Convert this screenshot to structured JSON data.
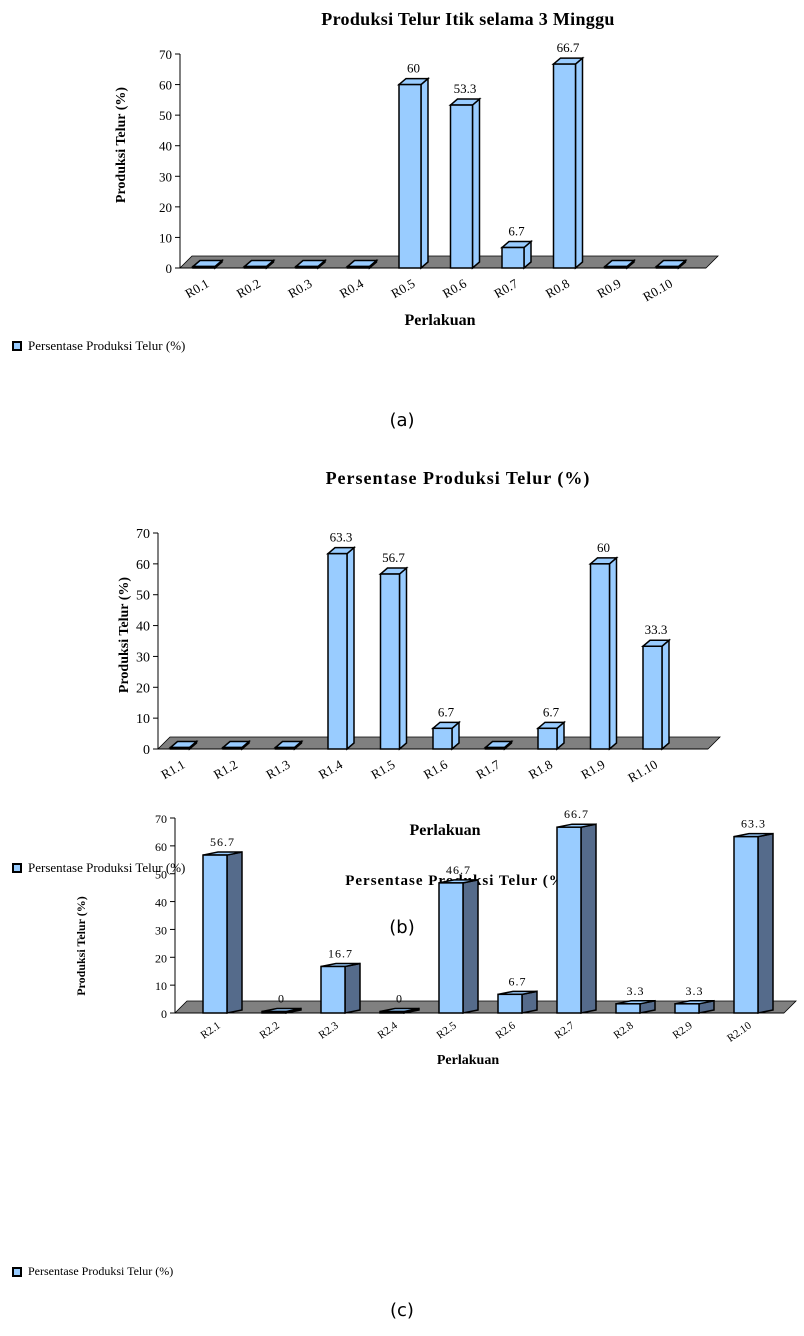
{
  "chart_data": [
    {
      "type": "bar",
      "title": "Produksi Telur Itik selama 3 Minggu",
      "xlabel": "Perlakuan",
      "ylabel": "Produksi  Telur (%)",
      "ylim": [
        0,
        70
      ],
      "yticks": [
        "0",
        "10",
        "20",
        "30",
        "40",
        "50",
        "60",
        "70"
      ],
      "categories": [
        "R0.1",
        "R0.2",
        "R0.3",
        "R0.4",
        "R0.5",
        "R0.6",
        "R0.7",
        "R0.8",
        "R0.9",
        "R0.10"
      ],
      "series": [
        {
          "name": "Persentase Produksi Telur (%)",
          "values": [
            0,
            0,
            0,
            0,
            60,
            53.3,
            6.7,
            66.7,
            0,
            0
          ],
          "labels": [
            "",
            "",
            "",
            "",
            "60",
            "53.3",
            "6.7",
            "66.7",
            "",
            ""
          ]
        }
      ],
      "legend": "bottom-left",
      "grid": false,
      "caption": "(a)",
      "colors": {
        "bar_front": "#99ccff",
        "bar_side": "#99ccff",
        "floor": "#808080"
      }
    },
    {
      "type": "bar",
      "title": "Persentase Produksi Telur (%)",
      "xlabel": "Perlakuan",
      "ylabel": "Produksi Telur (%)",
      "ylim": [
        0,
        70
      ],
      "yticks": [
        "0",
        "10",
        "20",
        "30",
        "40",
        "50",
        "60",
        "70"
      ],
      "categories": [
        "R1.1",
        "R1.2",
        "R1.3",
        "R1.4",
        "R1.5",
        "R1.6",
        "R1.7",
        "R1.8",
        "R1.9",
        "R1.10"
      ],
      "series": [
        {
          "name": "Persentase Produksi Telur (%)",
          "values": [
            0,
            0,
            0,
            63.3,
            56.7,
            6.7,
            0,
            6.7,
            60,
            33.3
          ],
          "labels": [
            "",
            "",
            "",
            "63.3",
            "56.7",
            "6.7",
            "",
            "6.7",
            "60",
            "33.3"
          ]
        }
      ],
      "legend": "bottom-left",
      "grid": false,
      "caption": "(b)",
      "colors": {
        "bar_front": "#99ccff",
        "bar_side": "#99ccff",
        "floor": "#808080"
      }
    },
    {
      "type": "bar",
      "title": "Persentase Produksi Telur (%)",
      "xlabel": "Perlakuan",
      "ylabel": "Produksi Telur (%)",
      "ylim": [
        0,
        70
      ],
      "yticks": [
        "0",
        "10",
        "20",
        "30",
        "40",
        "50",
        "60",
        "70"
      ],
      "categories": [
        "R2.1",
        "R2.2",
        "R2.3",
        "R2.4",
        "R2.5",
        "R2.6",
        "R2.7",
        "R2.8",
        "R2.9",
        "R2.10"
      ],
      "series": [
        {
          "name": "Persentase Produksi Telur (%)",
          "values": [
            56.7,
            0,
            16.7,
            0,
            46.7,
            6.7,
            66.7,
            3.3,
            3.3,
            63.3
          ],
          "labels": [
            "56.7",
            "0",
            "16.7",
            "0",
            "46.7",
            "6.7",
            "66.7",
            "3.3",
            "3.3",
            "63.3"
          ]
        }
      ],
      "legend": "bottom-left",
      "grid": false,
      "caption": "(c)",
      "colors": {
        "bar_front": "#99ccff",
        "bar_side": "#556b8b",
        "floor": "#808080"
      }
    }
  ]
}
